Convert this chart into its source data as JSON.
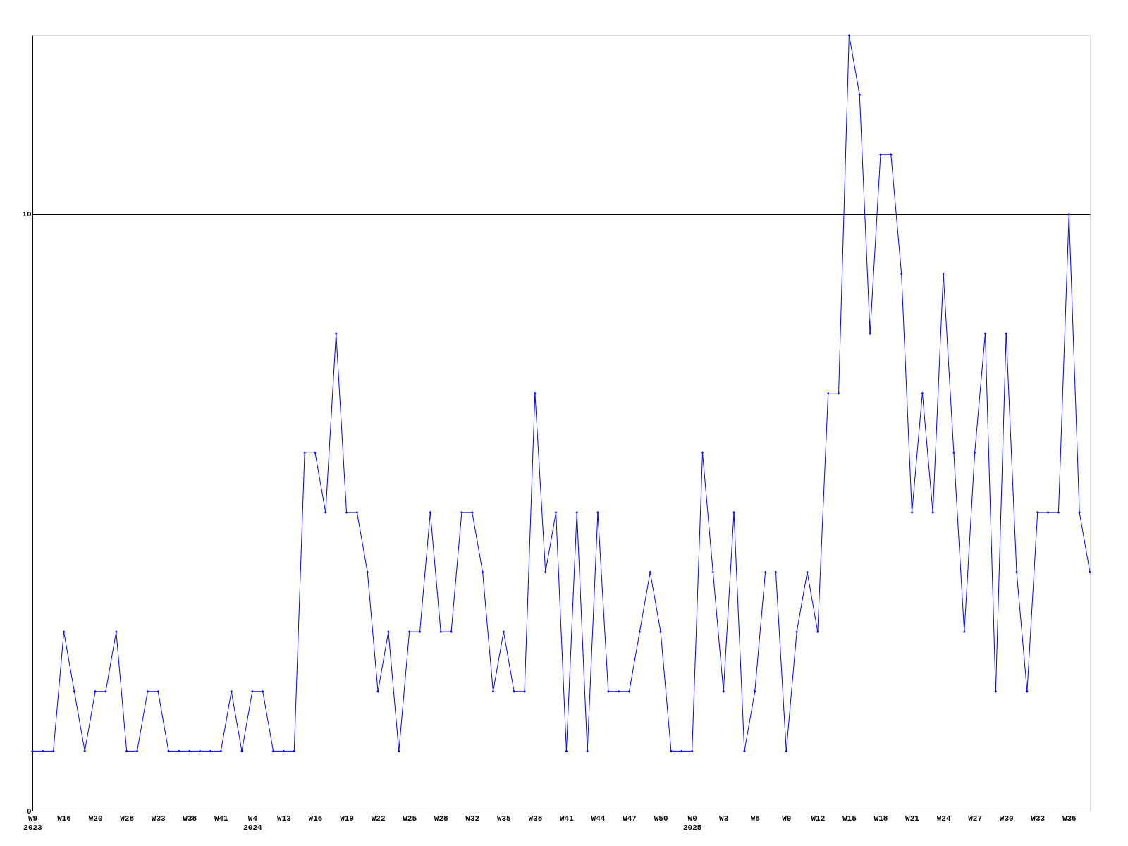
{
  "chart_data": {
    "type": "line",
    "categories": [
      "W9\n2023",
      null,
      null,
      "W16",
      null,
      null,
      "W20",
      null,
      null,
      "W28",
      null,
      null,
      "W33",
      null,
      null,
      "W38",
      null,
      null,
      "W41",
      null,
      null,
      "W4\n2024",
      null,
      null,
      "W13",
      null,
      null,
      "W16",
      null,
      null,
      "W19",
      null,
      null,
      "W22",
      null,
      null,
      "W25",
      null,
      null,
      "W28",
      null,
      null,
      "W32",
      null,
      null,
      "W35",
      null,
      null,
      "W38",
      null,
      null,
      "W41",
      null,
      null,
      "W44",
      null,
      null,
      "W47",
      null,
      null,
      "W50",
      null,
      null,
      "W0\n2025",
      null,
      null,
      "W3",
      null,
      null,
      "W6",
      null,
      null,
      "W9",
      null,
      null,
      "W12",
      null,
      null,
      "W15",
      null,
      null,
      "W18",
      null,
      null,
      "W21",
      null,
      null,
      "W24",
      null,
      null,
      "W27",
      null,
      null,
      "W30",
      null,
      null,
      "W33",
      null,
      null,
      "W36",
      null,
      null
    ],
    "series": [
      {
        "color": "#0000ff",
        "values": [
          1,
          1,
          1,
          3,
          2,
          1,
          2,
          2,
          3,
          1,
          1,
          2,
          2,
          1,
          1,
          1,
          1,
          1,
          1,
          2,
          1,
          2,
          2,
          1,
          1,
          1,
          6,
          6,
          5,
          8,
          5,
          5,
          4,
          2,
          3,
          1,
          3,
          3,
          5,
          3,
          3,
          5,
          5,
          4,
          2,
          3,
          2,
          2,
          7,
          4,
          5,
          1,
          5,
          1,
          5,
          2,
          2,
          2,
          3,
          4,
          3,
          1,
          1,
          1,
          6,
          4,
          2,
          5,
          1,
          2,
          4,
          4,
          1,
          3,
          4,
          3,
          7,
          7,
          13,
          12,
          8,
          11,
          11,
          9,
          5,
          7,
          5,
          9,
          6,
          3,
          6,
          8,
          2,
          8,
          4,
          2,
          5,
          5,
          5,
          10,
          5,
          4
        ]
      }
    ],
    "ylim": [
      0,
      13
    ],
    "yticks": [
      0,
      10
    ],
    "grid": "y",
    "marker": "diamond",
    "line_style": "solid"
  }
}
